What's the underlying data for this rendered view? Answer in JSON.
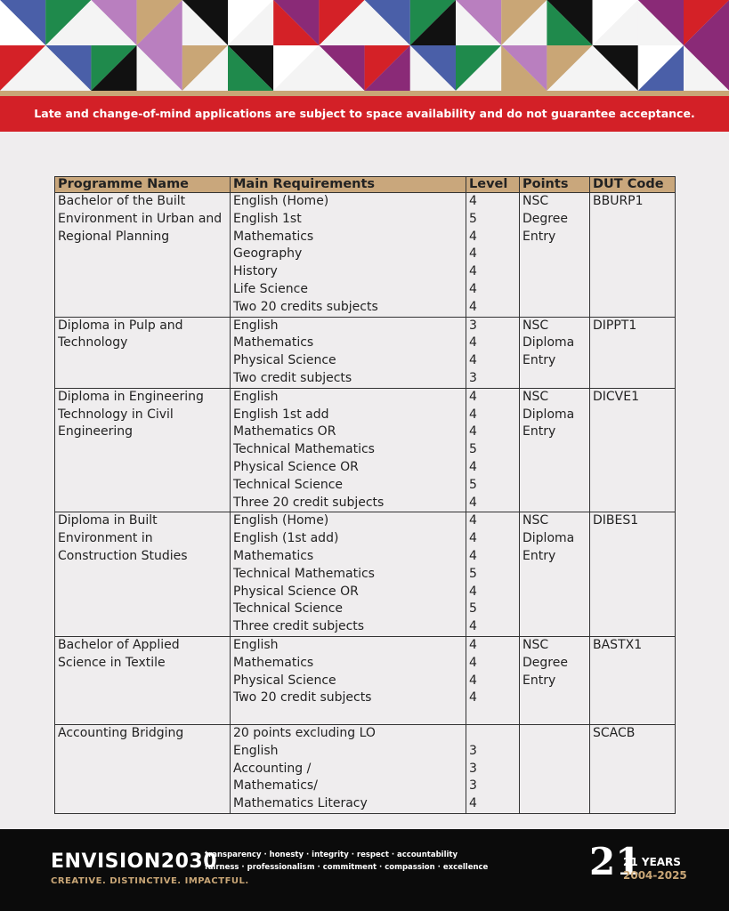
{
  "notice": "Late and change-of-mind applications are subject to space availability and do not guarantee acceptance.",
  "table": {
    "headers": [
      "Programme Name",
      "Main Requirements",
      "Level",
      "Points",
      "DUT Code"
    ],
    "rows": [
      {
        "programme": "Bachelor of the Built Environment in Urban and Regional Planning",
        "requirements": [
          "English (Home)",
          "English 1st",
          "Mathematics",
          "Geography",
          "History",
          "Life Science",
          "Two 20 credits subjects"
        ],
        "levels": [
          4,
          5,
          4,
          4,
          4,
          4,
          4
        ],
        "points": "NSC Degree Entry",
        "code": "BBURP1"
      },
      {
        "programme": "Diploma in Pulp and Technology",
        "requirements": [
          "English",
          "Mathematics",
          "Physical Science",
          "Two credit subjects"
        ],
        "levels": [
          3,
          4,
          4,
          3
        ],
        "points": "NSC Diploma Entry",
        "code": "DIPPT1"
      },
      {
        "programme": "Diploma in Engineering Technology in Civil Engineering",
        "requirements": [
          "English",
          "English 1st add",
          "Mathematics OR",
          "Technical Mathematics",
          "Physical Science OR",
          "Technical Science",
          "Three 20 credit subjects"
        ],
        "levels": [
          4,
          4,
          4,
          5,
          4,
          5,
          4
        ],
        "points": "NSC Diploma Entry",
        "code": "DICVE1"
      },
      {
        "programme": "Diploma in Built Environment in Construction Studies",
        "requirements": [
          "English (Home)",
          "English (1st add)",
          "Mathematics",
          "Technical Mathematics",
          "Physical Science OR",
          "Technical Science",
          "Three credit subjects"
        ],
        "levels": [
          4,
          4,
          4,
          5,
          4,
          5,
          4
        ],
        "points": "NSC Diploma Entry",
        "code": "DIBES1"
      },
      {
        "programme": "Bachelor of Applied Science in Textile",
        "requirements": [
          "English",
          "Mathematics",
          "Physical Science",
          "Two 20 credit subjects"
        ],
        "levels": [
          4,
          4,
          4,
          4
        ],
        "points": "NSC Degree Entry",
        "code": "BASTX1"
      },
      {
        "programme": "Accounting Bridging",
        "requirements": [
          "20 points excluding LO",
          "English",
          "Accounting /",
          "Mathematics/",
          "Mathematics Literacy"
        ],
        "levels": [
          null,
          3,
          3,
          3,
          4
        ],
        "points": null,
        "code": "SCACB"
      }
    ]
  },
  "footer": {
    "brand": "ENVISION2030",
    "values_line1": "transparency · honesty · integrity · respect · accountability",
    "values_line2": "fairness · professionalism · commitment · compassion · excellence",
    "slogan": "CREATIVE. DISTINCTIVE. IMPACTFUL.",
    "logo_number": "21",
    "years": "21 YEARS",
    "span": "2004-2025"
  }
}
